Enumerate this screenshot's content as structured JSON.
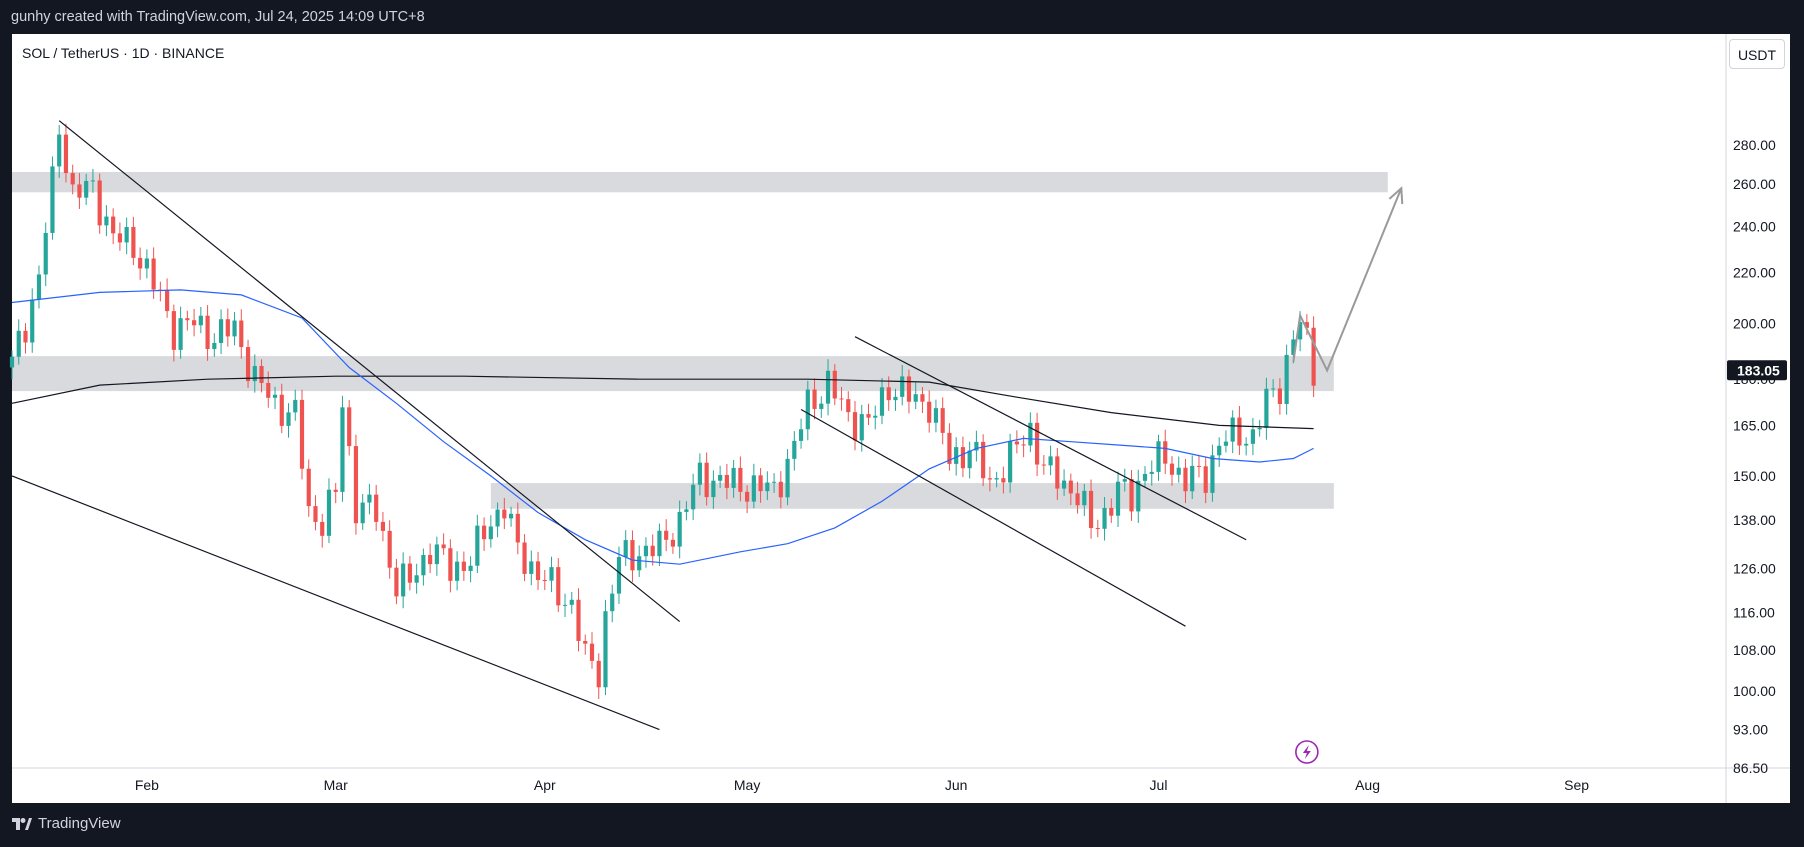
{
  "header": {
    "credit": "gunhy created with TradingView.com, Jul 24, 2025 14:09 UTC+8"
  },
  "symbol_legend": "SOL / TetherUS · 1D · BINANCE",
  "unit_button": "USDT",
  "footer": {
    "brand": "TradingView"
  },
  "colors": {
    "up": "#26a69a",
    "down": "#ef5350",
    "ma_short": "#2962ff",
    "ma_long": "#131722",
    "zone": "#d9dadd",
    "price_tag": "#131722",
    "projection": "#9a9a9a",
    "lightning": "#9c27b0"
  },
  "chart_data": {
    "type": "candlestick",
    "symbol": "SOL / TetherUS",
    "timeframe": "1D",
    "exchange": "BINANCE",
    "y_scale": "log",
    "ylim": [
      86.5,
      345
    ],
    "y_ticks": [
      "280.00",
      "260.00",
      "240.00",
      "220.00",
      "200.00",
      "165.00",
      "150.00",
      "138.00",
      "126.00",
      "116.00",
      "108.00",
      "100.00",
      "93.00",
      "86.50"
    ],
    "partially_hidden_tick": "180.00",
    "x_ticks": [
      "Feb",
      "Mar",
      "Apr",
      "May",
      "Jun",
      "Jul",
      "Aug",
      "Sep"
    ],
    "x_range": [
      "2025-01-12",
      "2025-09-23"
    ],
    "current_price": "183.05",
    "candles_anchor_path": [
      [
        "2025-01-12",
        185
      ],
      [
        "2025-01-14",
        200
      ],
      [
        "2025-01-16",
        218
      ],
      [
        "2025-01-18",
        260
      ],
      [
        "2025-01-19",
        290
      ],
      [
        "2025-01-21",
        255
      ],
      [
        "2025-01-24",
        258
      ],
      [
        "2025-01-27",
        235
      ],
      [
        "2025-01-30",
        232
      ],
      [
        "2025-02-02",
        215
      ],
      [
        "2025-02-05",
        198
      ],
      [
        "2025-02-08",
        200
      ],
      [
        "2025-02-11",
        195
      ],
      [
        "2025-02-14",
        198
      ],
      [
        "2025-02-17",
        180
      ],
      [
        "2025-02-20",
        172
      ],
      [
        "2025-02-23",
        168
      ],
      [
        "2025-02-25",
        140
      ],
      [
        "2025-02-27",
        138
      ],
      [
        "2025-03-01",
        145
      ],
      [
        "2025-03-02",
        172
      ],
      [
        "2025-03-04",
        142
      ],
      [
        "2025-03-07",
        140
      ],
      [
        "2025-03-10",
        122
      ],
      [
        "2025-03-12",
        123
      ],
      [
        "2025-03-15",
        131
      ],
      [
        "2025-03-18",
        126
      ],
      [
        "2025-03-21",
        128
      ],
      [
        "2025-03-24",
        138
      ],
      [
        "2025-03-26",
        142
      ],
      [
        "2025-03-28",
        130
      ],
      [
        "2025-03-31",
        125
      ],
      [
        "2025-04-03",
        120
      ],
      [
        "2025-04-05",
        118
      ],
      [
        "2025-04-07",
        106
      ],
      [
        "2025-04-09",
        104
      ],
      [
        "2025-04-10",
        115
      ],
      [
        "2025-04-12",
        128
      ],
      [
        "2025-04-15",
        130
      ],
      [
        "2025-04-18",
        131
      ],
      [
        "2025-04-21",
        138
      ],
      [
        "2025-04-24",
        150
      ],
      [
        "2025-04-28",
        148
      ],
      [
        "2025-05-02",
        147
      ],
      [
        "2025-05-05",
        146
      ],
      [
        "2025-05-08",
        158
      ],
      [
        "2025-05-10",
        172
      ],
      [
        "2025-05-13",
        178
      ],
      [
        "2025-05-16",
        168
      ],
      [
        "2025-05-19",
        165
      ],
      [
        "2025-05-22",
        178
      ],
      [
        "2025-05-25",
        174
      ],
      [
        "2025-05-28",
        172
      ],
      [
        "2025-05-31",
        155
      ],
      [
        "2025-06-03",
        158
      ],
      [
        "2025-06-06",
        148
      ],
      [
        "2025-06-09",
        155
      ],
      [
        "2025-06-12",
        164
      ],
      [
        "2025-06-14",
        152
      ],
      [
        "2025-06-17",
        148
      ],
      [
        "2025-06-19",
        145
      ],
      [
        "2025-06-21",
        136
      ],
      [
        "2025-06-23",
        140
      ],
      [
        "2025-06-25",
        146
      ],
      [
        "2025-06-27",
        144
      ],
      [
        "2025-06-29",
        152
      ],
      [
        "2025-07-02",
        155
      ],
      [
        "2025-07-05",
        149
      ],
      [
        "2025-07-08",
        150
      ],
      [
        "2025-07-10",
        160
      ],
      [
        "2025-07-13",
        162
      ],
      [
        "2025-07-15",
        162
      ],
      [
        "2025-07-17",
        172
      ],
      [
        "2025-07-19",
        178
      ],
      [
        "2025-07-21",
        195
      ],
      [
        "2025-07-22",
        200
      ],
      [
        "2025-07-23",
        192
      ],
      [
        "2025-07-24",
        183
      ]
    ],
    "ma_short": [
      [
        "2025-01-12",
        208
      ],
      [
        "2025-01-25",
        212
      ],
      [
        "2025-02-06",
        213
      ],
      [
        "2025-02-15",
        211
      ],
      [
        "2025-02-24",
        202
      ],
      [
        "2025-03-03",
        184
      ],
      [
        "2025-03-10",
        172
      ],
      [
        "2025-03-17",
        160
      ],
      [
        "2025-03-24",
        150
      ],
      [
        "2025-03-31",
        140
      ],
      [
        "2025-04-07",
        133
      ],
      [
        "2025-04-14",
        128
      ],
      [
        "2025-04-21",
        127
      ],
      [
        "2025-04-30",
        130
      ],
      [
        "2025-05-07",
        132
      ],
      [
        "2025-05-14",
        136
      ],
      [
        "2025-05-21",
        143
      ],
      [
        "2025-05-28",
        152
      ],
      [
        "2025-06-04",
        158
      ],
      [
        "2025-06-11",
        161
      ],
      [
        "2025-06-18",
        160
      ],
      [
        "2025-06-25",
        159
      ],
      [
        "2025-07-02",
        158
      ],
      [
        "2025-07-09",
        155
      ],
      [
        "2025-07-16",
        154
      ],
      [
        "2025-07-21",
        155
      ],
      [
        "2025-07-24",
        158
      ]
    ],
    "ma_long": [
      [
        "2025-01-12",
        172
      ],
      [
        "2025-01-25",
        178
      ],
      [
        "2025-02-10",
        180
      ],
      [
        "2025-03-01",
        181
      ],
      [
        "2025-03-20",
        181
      ],
      [
        "2025-04-15",
        180
      ],
      [
        "2025-05-10",
        180
      ],
      [
        "2025-05-28",
        179
      ],
      [
        "2025-06-10",
        174
      ],
      [
        "2025-06-24",
        169
      ],
      [
        "2025-07-10",
        165
      ],
      [
        "2025-07-24",
        164
      ]
    ],
    "zones": [
      {
        "from": "2025-01-12",
        "to": "2025-08-04",
        "low": 256,
        "high": 266
      },
      {
        "from": "2025-01-12",
        "to": "2025-07-27",
        "low": 176,
        "high": 188
      },
      {
        "from": "2025-03-24",
        "to": "2025-07-27",
        "low": 141,
        "high": 148
      }
    ],
    "trendlines": [
      {
        "from": [
          "2025-01-19",
          293
        ],
        "to": [
          "2025-04-21",
          114
        ]
      },
      {
        "from": [
          "2025-01-12",
          150
        ],
        "to": [
          "2025-04-18",
          93
        ]
      },
      {
        "from": [
          "2025-05-17",
          195
        ],
        "to": [
          "2025-07-14",
          133
        ]
      },
      {
        "from": [
          "2025-05-09",
          170
        ],
        "to": [
          "2025-07-05",
          113
        ]
      }
    ],
    "projection": [
      [
        "2025-07-21",
        186
      ],
      [
        "2025-07-22",
        203
      ],
      [
        "2025-07-26",
        183
      ],
      [
        "2025-08-06",
        258
      ]
    ],
    "event_marker_date": "2025-07-23"
  }
}
